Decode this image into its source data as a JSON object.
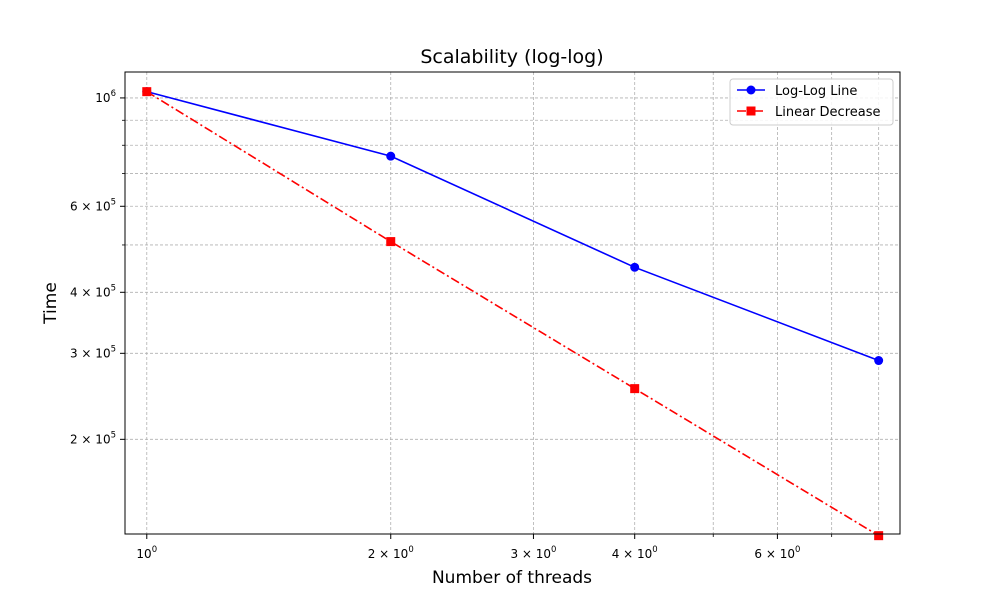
{
  "chart_data": {
    "type": "line",
    "title": "Scalability (log-log)",
    "xlabel": "Number of threads",
    "ylabel": "Time",
    "xscale": "log",
    "yscale": "log",
    "xlim": [
      0.94,
      8.5
    ],
    "ylim": [
      128000,
      1130000
    ],
    "grid": true,
    "legend_position": "top-right",
    "x_ticks": [
      {
        "value": 1,
        "base": "10",
        "exp": "0"
      },
      {
        "value": 2,
        "base": "2 × 10",
        "exp": "0"
      },
      {
        "value": 3,
        "base": "3 × 10",
        "exp": "0"
      },
      {
        "value": 4,
        "base": "4 × 10",
        "exp": "0"
      },
      {
        "value": 6,
        "base": "6 × 10",
        "exp": "0"
      }
    ],
    "y_ticks": [
      {
        "value": 200000,
        "base": "2 × 10",
        "exp": "5"
      },
      {
        "value": 300000,
        "base": "3 × 10",
        "exp": "5"
      },
      {
        "value": 400000,
        "base": "4 × 10",
        "exp": "5"
      },
      {
        "value": 600000,
        "base": "6 × 10",
        "exp": "5"
      },
      {
        "value": 1000000,
        "base": "10",
        "exp": "6"
      }
    ],
    "x_minor_ticks": [
      5,
      7,
      8
    ],
    "y_minor_ticks": [
      500000,
      700000,
      800000,
      900000
    ],
    "x": [
      1,
      2,
      4,
      8
    ],
    "series": [
      {
        "name": "Log-Log Line",
        "values": [
          1030000,
          760000,
          450000,
          290000
        ],
        "color": "#0000ff",
        "marker": "circle",
        "line_style": "solid"
      },
      {
        "name": "Linear Decrease",
        "values": [
          1030000,
          508000,
          254000,
          127000
        ],
        "color": "#ff0000",
        "marker": "square",
        "line_style": "dash-dot"
      }
    ]
  }
}
